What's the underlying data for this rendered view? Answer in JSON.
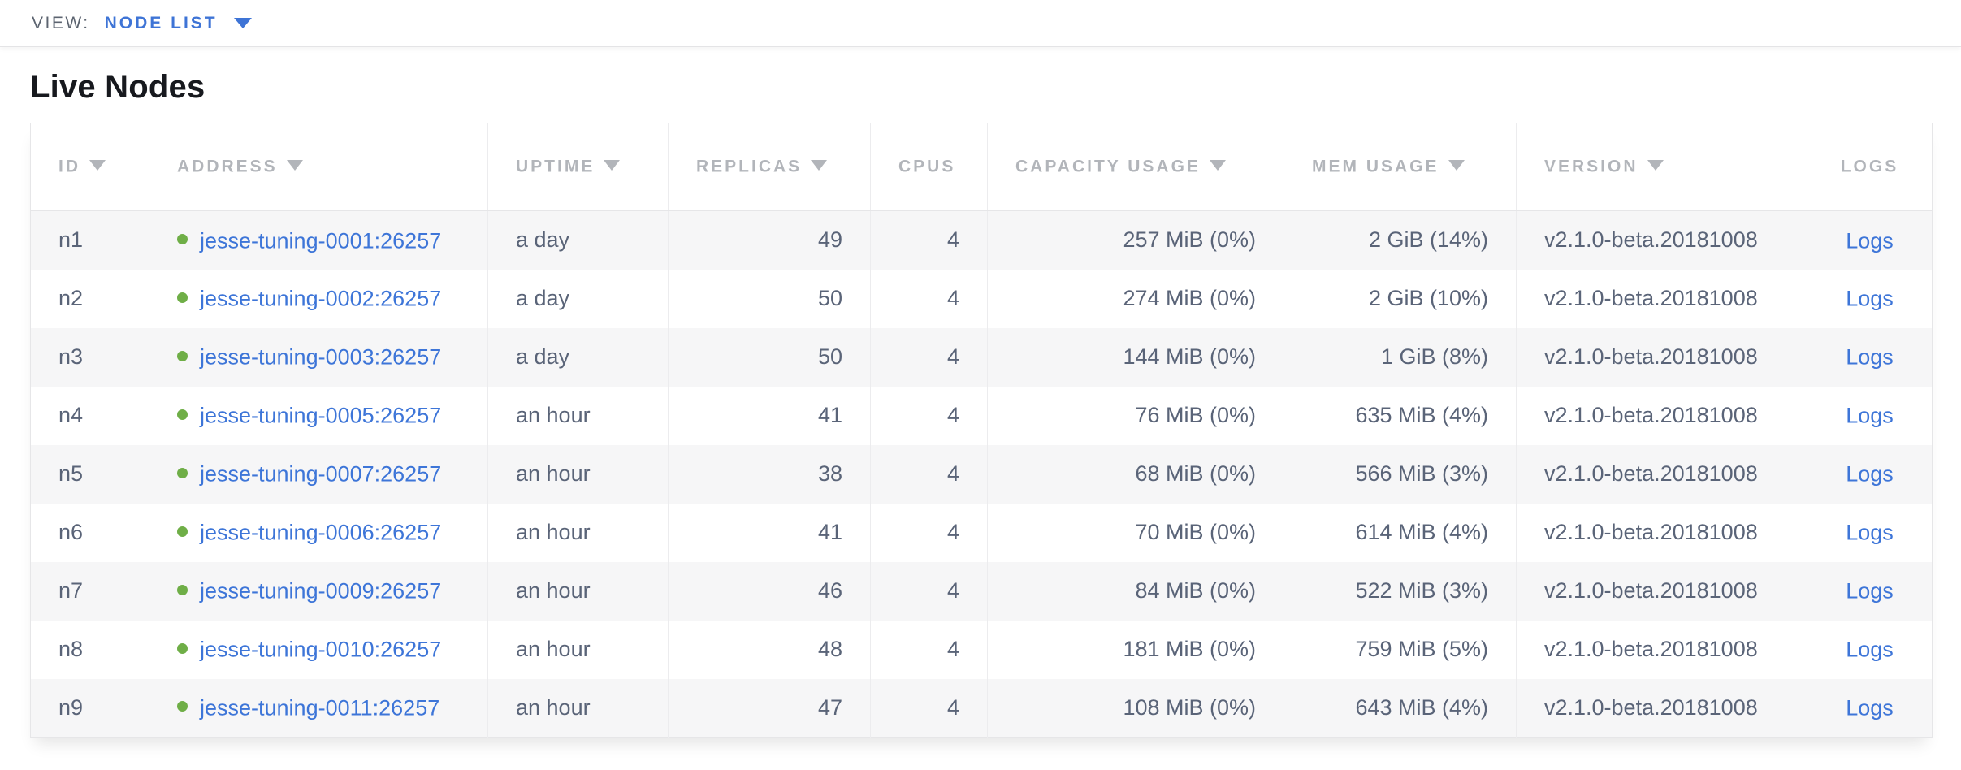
{
  "view_bar": {
    "label": "VIEW:",
    "selected": "NODE LIST",
    "caret_icon": "caret-down-icon"
  },
  "page": {
    "title": "Live Nodes"
  },
  "colors": {
    "accent_blue": "#3e74d6",
    "link_blue": "#3d75d8",
    "node_live_green": "#6fae47",
    "header_text_gray": "#b2b5ba",
    "body_text_slate": "#5a6478",
    "alt_row_gray": "#f6f6f7"
  },
  "table": {
    "columns": [
      {
        "key": "id",
        "label": "ID",
        "sortable": true,
        "align": "left"
      },
      {
        "key": "address",
        "label": "ADDRESS",
        "sortable": true,
        "align": "left"
      },
      {
        "key": "uptime",
        "label": "UPTIME",
        "sortable": true,
        "align": "left"
      },
      {
        "key": "replicas",
        "label": "REPLICAS",
        "sortable": true,
        "align": "right"
      },
      {
        "key": "cpus",
        "label": "CPUS",
        "sortable": false,
        "align": "right"
      },
      {
        "key": "capacity",
        "label": "CAPACITY USAGE",
        "sortable": true,
        "align": "right"
      },
      {
        "key": "mem",
        "label": "MEM USAGE",
        "sortable": true,
        "align": "right"
      },
      {
        "key": "version",
        "label": "VERSION",
        "sortable": true,
        "align": "left"
      },
      {
        "key": "logs",
        "label": "LOGS",
        "sortable": false,
        "align": "center"
      }
    ],
    "rows": [
      {
        "id": "n1",
        "address": "jesse-tuning-0001:26257",
        "uptime": "a day",
        "replicas": "49",
        "cpus": "4",
        "capacity": "257 MiB (0%)",
        "mem": "2 GiB (14%)",
        "version": "v2.1.0-beta.20181008",
        "logs": "Logs"
      },
      {
        "id": "n2",
        "address": "jesse-tuning-0002:26257",
        "uptime": "a day",
        "replicas": "50",
        "cpus": "4",
        "capacity": "274 MiB (0%)",
        "mem": "2 GiB (10%)",
        "version": "v2.1.0-beta.20181008",
        "logs": "Logs"
      },
      {
        "id": "n3",
        "address": "jesse-tuning-0003:26257",
        "uptime": "a day",
        "replicas": "50",
        "cpus": "4",
        "capacity": "144 MiB (0%)",
        "mem": "1 GiB (8%)",
        "version": "v2.1.0-beta.20181008",
        "logs": "Logs"
      },
      {
        "id": "n4",
        "address": "jesse-tuning-0005:26257",
        "uptime": "an hour",
        "replicas": "41",
        "cpus": "4",
        "capacity": "76 MiB (0%)",
        "mem": "635 MiB (4%)",
        "version": "v2.1.0-beta.20181008",
        "logs": "Logs"
      },
      {
        "id": "n5",
        "address": "jesse-tuning-0007:26257",
        "uptime": "an hour",
        "replicas": "38",
        "cpus": "4",
        "capacity": "68 MiB (0%)",
        "mem": "566 MiB (3%)",
        "version": "v2.1.0-beta.20181008",
        "logs": "Logs"
      },
      {
        "id": "n6",
        "address": "jesse-tuning-0006:26257",
        "uptime": "an hour",
        "replicas": "41",
        "cpus": "4",
        "capacity": "70 MiB (0%)",
        "mem": "614 MiB (4%)",
        "version": "v2.1.0-beta.20181008",
        "logs": "Logs"
      },
      {
        "id": "n7",
        "address": "jesse-tuning-0009:26257",
        "uptime": "an hour",
        "replicas": "46",
        "cpus": "4",
        "capacity": "84 MiB (0%)",
        "mem": "522 MiB (3%)",
        "version": "v2.1.0-beta.20181008",
        "logs": "Logs"
      },
      {
        "id": "n8",
        "address": "jesse-tuning-0010:26257",
        "uptime": "an hour",
        "replicas": "48",
        "cpus": "4",
        "capacity": "181 MiB (0%)",
        "mem": "759 MiB (5%)",
        "version": "v2.1.0-beta.20181008",
        "logs": "Logs"
      },
      {
        "id": "n9",
        "address": "jesse-tuning-0011:26257",
        "uptime": "an hour",
        "replicas": "47",
        "cpus": "4",
        "capacity": "108 MiB (0%)",
        "mem": "643 MiB (4%)",
        "version": "v2.1.0-beta.20181008",
        "logs": "Logs"
      }
    ]
  }
}
